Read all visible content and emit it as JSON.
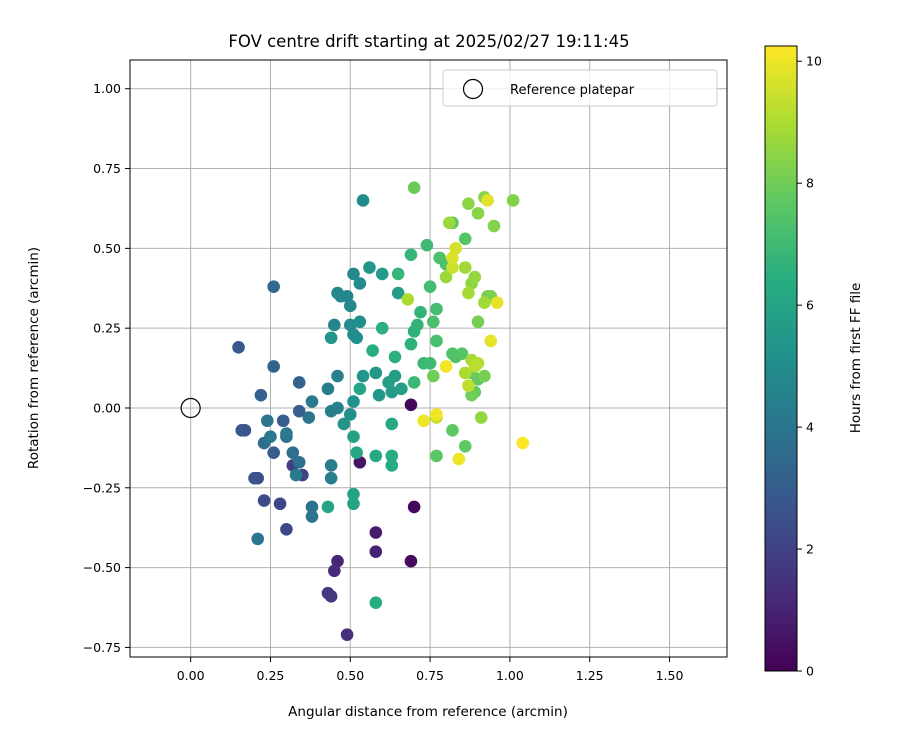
{
  "chart_data": {
    "type": "scatter",
    "title": "FOV centre drift starting at 2025/02/27 19:11:45",
    "xlabel": "Angular distance from reference (arcmin)",
    "ylabel": "Rotation from reference (arcmin)",
    "xlim": [
      -0.19,
      1.68
    ],
    "ylim": [
      -0.78,
      1.09
    ],
    "x_ticks": [
      0.0,
      0.25,
      0.5,
      0.75,
      1.0,
      1.25,
      1.5
    ],
    "x_tick_labels": [
      "0.00",
      "0.25",
      "0.50",
      "0.75",
      "1.00",
      "1.25",
      "1.50"
    ],
    "y_ticks": [
      -0.75,
      -0.5,
      -0.25,
      0.0,
      0.25,
      0.5,
      0.75,
      1.0
    ],
    "y_tick_labels": [
      "−0.75",
      "−0.50",
      "−0.25",
      "0.00",
      "0.25",
      "0.50",
      "0.75",
      "1.00"
    ],
    "grid": true,
    "colorbar": {
      "label": "Hours from first FF file",
      "colormap": "viridis",
      "range": [
        0,
        10.25
      ],
      "ticks": [
        0,
        2,
        4,
        6,
        8,
        10
      ],
      "tick_labels": [
        "0",
        "2",
        "4",
        "6",
        "8",
        "10"
      ]
    },
    "legend": {
      "position": "upper right",
      "entries": [
        {
          "label": "Reference platepar",
          "marker": "open-circle"
        }
      ]
    },
    "reference_point": {
      "x": 0.0,
      "y": 0.0
    },
    "points": [
      {
        "x": 0.69,
        "y": 0.01,
        "h": 0.2
      },
      {
        "x": 0.7,
        "y": -0.31,
        "h": 0.2
      },
      {
        "x": 0.69,
        "y": -0.48,
        "h": 0.3
      },
      {
        "x": 0.53,
        "y": -0.17,
        "h": 0.6
      },
      {
        "x": 0.58,
        "y": -0.39,
        "h": 0.8
      },
      {
        "x": 0.58,
        "y": -0.45,
        "h": 1.0
      },
      {
        "x": 0.46,
        "y": -0.48,
        "h": 1.1
      },
      {
        "x": 0.45,
        "y": -0.51,
        "h": 1.2
      },
      {
        "x": 0.49,
        "y": -0.71,
        "h": 1.4
      },
      {
        "x": 0.43,
        "y": -0.58,
        "h": 1.6
      },
      {
        "x": 0.44,
        "y": -0.59,
        "h": 1.7
      },
      {
        "x": 0.32,
        "y": -0.18,
        "h": 1.9
      },
      {
        "x": 0.35,
        "y": -0.21,
        "h": 2.0
      },
      {
        "x": 0.28,
        "y": -0.3,
        "h": 2.1
      },
      {
        "x": 0.3,
        "y": -0.38,
        "h": 2.2
      },
      {
        "x": 0.23,
        "y": -0.29,
        "h": 2.3
      },
      {
        "x": 0.21,
        "y": -0.22,
        "h": 2.5
      },
      {
        "x": 0.2,
        "y": -0.22,
        "h": 2.6
      },
      {
        "x": 0.17,
        "y": -0.07,
        "h": 2.7
      },
      {
        "x": 0.16,
        "y": -0.07,
        "h": 2.8
      },
      {
        "x": 0.15,
        "y": 0.19,
        "h": 2.9
      },
      {
        "x": 0.26,
        "y": -0.14,
        "h": 3.0
      },
      {
        "x": 0.29,
        "y": -0.04,
        "h": 3.0
      },
      {
        "x": 0.34,
        "y": -0.01,
        "h": 3.1
      },
      {
        "x": 0.34,
        "y": 0.08,
        "h": 3.2
      },
      {
        "x": 0.22,
        "y": 0.04,
        "h": 3.2
      },
      {
        "x": 0.26,
        "y": 0.13,
        "h": 3.3
      },
      {
        "x": 0.26,
        "y": 0.38,
        "h": 3.5
      },
      {
        "x": 0.23,
        "y": -0.11,
        "h": 3.6
      },
      {
        "x": 0.3,
        "y": -0.09,
        "h": 3.7
      },
      {
        "x": 0.32,
        "y": -0.14,
        "h": 3.7
      },
      {
        "x": 0.34,
        "y": -0.17,
        "h": 3.8
      },
      {
        "x": 0.38,
        "y": -0.31,
        "h": 3.8
      },
      {
        "x": 0.38,
        "y": -0.34,
        "h": 3.9
      },
      {
        "x": 0.24,
        "y": -0.04,
        "h": 4.0
      },
      {
        "x": 0.37,
        "y": -0.03,
        "h": 4.0
      },
      {
        "x": 0.21,
        "y": -0.41,
        "h": 4.0
      },
      {
        "x": 0.25,
        "y": -0.09,
        "h": 4.1
      },
      {
        "x": 0.3,
        "y": -0.08,
        "h": 4.1
      },
      {
        "x": 0.33,
        "y": -0.21,
        "h": 4.2
      },
      {
        "x": 0.38,
        "y": 0.02,
        "h": 4.2
      },
      {
        "x": 0.43,
        "y": 0.06,
        "h": 4.3
      },
      {
        "x": 0.44,
        "y": -0.18,
        "h": 4.3
      },
      {
        "x": 0.44,
        "y": -0.22,
        "h": 4.4
      },
      {
        "x": 0.44,
        "y": -0.01,
        "h": 4.4
      },
      {
        "x": 0.46,
        "y": 0.0,
        "h": 4.5
      },
      {
        "x": 0.46,
        "y": 0.1,
        "h": 4.5
      },
      {
        "x": 0.45,
        "y": 0.26,
        "h": 4.6
      },
      {
        "x": 0.46,
        "y": 0.36,
        "h": 4.6
      },
      {
        "x": 0.47,
        "y": 0.35,
        "h": 4.7
      },
      {
        "x": 0.49,
        "y": 0.35,
        "h": 4.7
      },
      {
        "x": 0.5,
        "y": 0.32,
        "h": 4.8
      },
      {
        "x": 0.51,
        "y": 0.42,
        "h": 4.8
      },
      {
        "x": 0.53,
        "y": 0.39,
        "h": 4.9
      },
      {
        "x": 0.54,
        "y": 0.65,
        "h": 4.9
      },
      {
        "x": 0.5,
        "y": 0.26,
        "h": 5.0
      },
      {
        "x": 0.51,
        "y": 0.23,
        "h": 5.0
      },
      {
        "x": 0.52,
        "y": 0.22,
        "h": 5.1
      },
      {
        "x": 0.53,
        "y": 0.27,
        "h": 5.1
      },
      {
        "x": 0.5,
        "y": -0.02,
        "h": 5.2
      },
      {
        "x": 0.51,
        "y": 0.02,
        "h": 5.2
      },
      {
        "x": 0.48,
        "y": -0.05,
        "h": 5.3
      },
      {
        "x": 0.44,
        "y": 0.22,
        "h": 5.3
      },
      {
        "x": 0.54,
        "y": 0.1,
        "h": 5.4
      },
      {
        "x": 0.56,
        "y": 0.44,
        "h": 5.4
      },
      {
        "x": 0.58,
        "y": 0.11,
        "h": 5.5
      },
      {
        "x": 0.59,
        "y": 0.04,
        "h": 5.5
      },
      {
        "x": 0.6,
        "y": 0.42,
        "h": 5.6
      },
      {
        "x": 0.63,
        "y": 0.05,
        "h": 5.6
      },
      {
        "x": 0.64,
        "y": 0.1,
        "h": 5.7
      },
      {
        "x": 0.65,
        "y": 0.36,
        "h": 5.7
      },
      {
        "x": 0.62,
        "y": 0.08,
        "h": 5.8
      },
      {
        "x": 0.66,
        "y": 0.06,
        "h": 5.8
      },
      {
        "x": 0.51,
        "y": -0.09,
        "h": 5.9
      },
      {
        "x": 0.51,
        "y": -0.27,
        "h": 5.9
      },
      {
        "x": 0.43,
        "y": -0.31,
        "h": 6.0
      },
      {
        "x": 0.51,
        "y": -0.3,
        "h": 6.0
      },
      {
        "x": 0.52,
        "y": -0.14,
        "h": 6.1
      },
      {
        "x": 0.53,
        "y": 0.06,
        "h": 6.1
      },
      {
        "x": 0.58,
        "y": -0.15,
        "h": 6.2
      },
      {
        "x": 0.63,
        "y": -0.05,
        "h": 6.2
      },
      {
        "x": 0.63,
        "y": -0.15,
        "h": 6.3
      },
      {
        "x": 0.63,
        "y": -0.18,
        "h": 6.3
      },
      {
        "x": 0.58,
        "y": -0.61,
        "h": 6.4
      },
      {
        "x": 0.57,
        "y": 0.18,
        "h": 6.4
      },
      {
        "x": 0.6,
        "y": 0.25,
        "h": 6.5
      },
      {
        "x": 0.64,
        "y": 0.16,
        "h": 6.5
      },
      {
        "x": 0.69,
        "y": 0.2,
        "h": 6.6
      },
      {
        "x": 0.7,
        "y": 0.24,
        "h": 6.6
      },
      {
        "x": 0.71,
        "y": 0.26,
        "h": 6.7
      },
      {
        "x": 0.72,
        "y": 0.3,
        "h": 6.7
      },
      {
        "x": 0.69,
        "y": 0.48,
        "h": 6.8
      },
      {
        "x": 0.65,
        "y": 0.42,
        "h": 6.8
      },
      {
        "x": 0.7,
        "y": 0.08,
        "h": 6.9
      },
      {
        "x": 0.73,
        "y": 0.14,
        "h": 6.9
      },
      {
        "x": 0.75,
        "y": 0.14,
        "h": 7.0
      },
      {
        "x": 0.74,
        "y": 0.51,
        "h": 7.0
      },
      {
        "x": 0.75,
        "y": 0.38,
        "h": 7.1
      },
      {
        "x": 0.77,
        "y": 0.31,
        "h": 7.1
      },
      {
        "x": 0.76,
        "y": 0.27,
        "h": 7.2
      },
      {
        "x": 0.77,
        "y": 0.21,
        "h": 7.2
      },
      {
        "x": 0.78,
        "y": 0.47,
        "h": 7.3
      },
      {
        "x": 0.8,
        "y": 0.45,
        "h": 7.3
      },
      {
        "x": 0.82,
        "y": 0.17,
        "h": 7.4
      },
      {
        "x": 0.83,
        "y": 0.16,
        "h": 7.4
      },
      {
        "x": 0.85,
        "y": 0.17,
        "h": 7.5
      },
      {
        "x": 0.86,
        "y": 0.53,
        "h": 7.5
      },
      {
        "x": 0.82,
        "y": 0.58,
        "h": 7.6
      },
      {
        "x": 0.77,
        "y": -0.15,
        "h": 7.6
      },
      {
        "x": 0.82,
        "y": -0.07,
        "h": 7.7
      },
      {
        "x": 0.86,
        "y": -0.12,
        "h": 7.7
      },
      {
        "x": 0.89,
        "y": 0.05,
        "h": 7.8
      },
      {
        "x": 0.9,
        "y": 0.09,
        "h": 7.8
      },
      {
        "x": 0.88,
        "y": 0.11,
        "h": 7.9
      },
      {
        "x": 0.7,
        "y": 0.69,
        "h": 7.9
      },
      {
        "x": 0.76,
        "y": 0.1,
        "h": 8.0
      },
      {
        "x": 0.88,
        "y": 0.04,
        "h": 8.0
      },
      {
        "x": 0.92,
        "y": 0.1,
        "h": 8.1
      },
      {
        "x": 0.9,
        "y": 0.27,
        "h": 8.1
      },
      {
        "x": 0.93,
        "y": 0.35,
        "h": 8.2
      },
      {
        "x": 0.94,
        "y": 0.35,
        "h": 8.2
      },
      {
        "x": 0.95,
        "y": 0.57,
        "h": 8.3
      },
      {
        "x": 1.01,
        "y": 0.65,
        "h": 8.3
      },
      {
        "x": 0.92,
        "y": 0.66,
        "h": 8.4
      },
      {
        "x": 0.9,
        "y": 0.61,
        "h": 8.4
      },
      {
        "x": 0.87,
        "y": 0.64,
        "h": 8.5
      },
      {
        "x": 0.88,
        "y": 0.39,
        "h": 8.5
      },
      {
        "x": 0.89,
        "y": 0.41,
        "h": 8.6
      },
      {
        "x": 0.91,
        "y": -0.03,
        "h": 8.6
      },
      {
        "x": 0.81,
        "y": 0.58,
        "h": 8.7
      },
      {
        "x": 0.8,
        "y": 0.41,
        "h": 8.7
      },
      {
        "x": 0.86,
        "y": 0.44,
        "h": 8.8
      },
      {
        "x": 0.92,
        "y": 0.33,
        "h": 8.8
      },
      {
        "x": 0.87,
        "y": 0.36,
        "h": 8.9
      },
      {
        "x": 0.88,
        "y": 0.15,
        "h": 8.9
      },
      {
        "x": 0.86,
        "y": 0.11,
        "h": 9.0
      },
      {
        "x": 0.9,
        "y": 0.14,
        "h": 9.1
      },
      {
        "x": 0.89,
        "y": 0.13,
        "h": 9.2
      },
      {
        "x": 0.87,
        "y": 0.07,
        "h": 9.3
      },
      {
        "x": 0.77,
        "y": -0.03,
        "h": 9.4
      },
      {
        "x": 0.82,
        "y": 0.44,
        "h": 9.5
      },
      {
        "x": 0.83,
        "y": 0.5,
        "h": 9.6
      },
      {
        "x": 0.82,
        "y": 0.47,
        "h": 9.7
      },
      {
        "x": 0.93,
        "y": 0.65,
        "h": 9.8
      },
      {
        "x": 0.96,
        "y": 0.33,
        "h": 9.9
      },
      {
        "x": 0.94,
        "y": 0.21,
        "h": 9.9
      },
      {
        "x": 0.84,
        "y": -0.16,
        "h": 10.0
      },
      {
        "x": 0.73,
        "y": -0.04,
        "h": 10.0
      },
      {
        "x": 0.77,
        "y": -0.02,
        "h": 10.1
      },
      {
        "x": 0.8,
        "y": 0.13,
        "h": 10.1
      },
      {
        "x": 1.04,
        "y": -0.11,
        "h": 10.2
      },
      {
        "x": 0.68,
        "y": 0.34,
        "h": 9.0
      }
    ]
  }
}
